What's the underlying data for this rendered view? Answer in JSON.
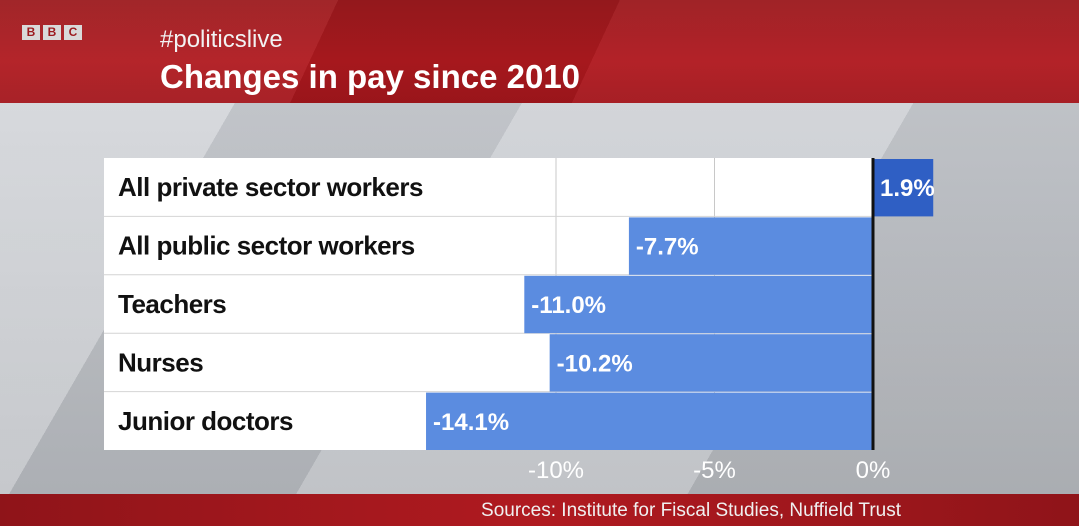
{
  "header": {
    "logo_text": "BBC",
    "hashtag": "#politicslive",
    "title": "Changes in pay since 2010"
  },
  "footer": {
    "sources": "Sources:  Institute for Fiscal Studies, Nuffield Trust"
  },
  "colors": {
    "bar": "#5b8ce0",
    "bar_positive": "#2f5fc4",
    "brand_red": "#b0191f"
  },
  "chart_data": {
    "type": "bar",
    "orientation": "horizontal",
    "categories": [
      "All private sector workers",
      "All public sector workers",
      "Teachers",
      "Nurses",
      "Junior doctors"
    ],
    "values": [
      1.9,
      -7.7,
      -11.0,
      -10.2,
      -14.1
    ],
    "data_labels": [
      "1.9%",
      "-7.7%",
      "-11.0%",
      "-10.2%",
      "-14.1%"
    ],
    "xlim": [
      -20,
      2
    ],
    "xticks": [
      -10,
      -5,
      0
    ],
    "xtick_labels": [
      "-10%",
      "-5%",
      "0%"
    ],
    "title": "Changes in pay since 2010",
    "grid": true
  }
}
